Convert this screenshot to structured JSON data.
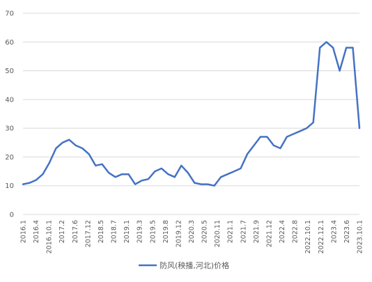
{
  "chart_data": {
    "type": "line",
    "title": "",
    "xlabel": "",
    "ylabel": "",
    "ylim": [
      0,
      70
    ],
    "yticks": [
      0,
      10,
      20,
      30,
      40,
      50,
      60,
      70
    ],
    "grid": true,
    "legend_position": "bottom",
    "x_tick_labels": [
      "2016.1",
      "2016.4",
      "2016.10.1",
      "2017.2",
      "2017.6",
      "2017.12",
      "2018.5",
      "2018.7",
      "2019.1",
      "2019.3",
      "2019.5",
      "2019.8",
      "2019.12",
      "2020.3",
      "2020.5",
      "2020.11",
      "2021.1",
      "2021.7",
      "2021.9",
      "2021.12",
      "2022.4",
      "2022.8",
      "2022.10.1",
      "2022.12.1",
      "2023.4",
      "2023.6",
      "2023.10.1"
    ],
    "series": [
      {
        "name": "防风(秧播,河北)价格",
        "color": "#4472C4",
        "values": [
          10.5,
          11,
          12,
          14,
          18,
          23,
          25,
          26,
          24,
          23,
          21,
          17,
          17.5,
          14.5,
          13,
          14,
          14,
          10.5,
          11.8,
          12.3,
          15,
          16,
          14,
          13,
          17,
          14.5,
          11,
          10.5,
          10.5,
          10,
          13,
          14,
          15,
          16,
          21,
          24,
          27,
          27,
          24,
          23,
          27,
          28,
          29,
          30,
          32,
          58,
          60,
          58,
          50,
          58,
          58,
          30
        ]
      }
    ]
  }
}
